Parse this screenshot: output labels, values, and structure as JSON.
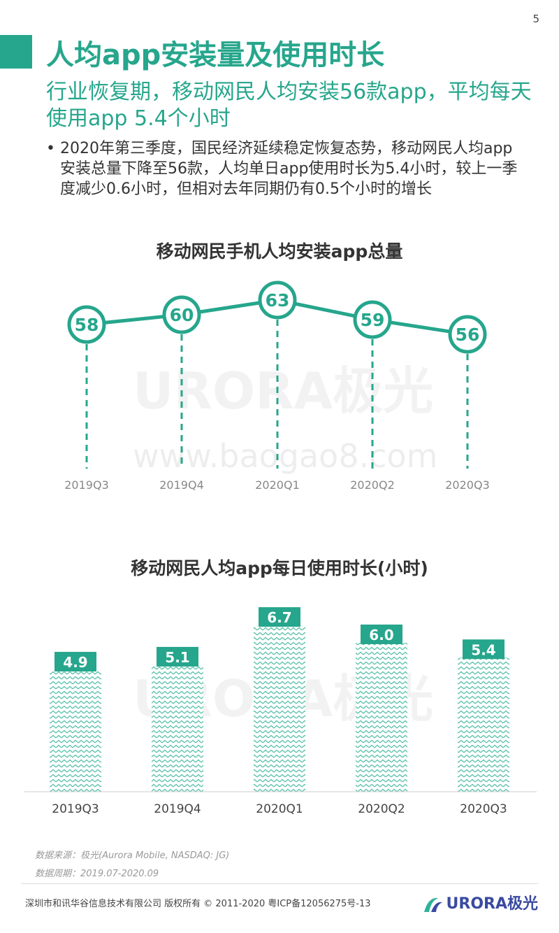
{
  "page_number": "5",
  "title": "人均app安装量及使用时长",
  "subtitle": "行业恢复期，移动网民人均安装56款app，平均每天使用app 5.4个小时",
  "bullet": "2020年第三季度，国民经济延续稳定恢复态势，移动网民人均app安装总量下降至56款，人均单日app使用时长为5.4小时，较上一季度减少0.6小时，但相对去年同期仍有0.5个小时的增长",
  "colors": {
    "accent": "#26a68c",
    "text": "#333333",
    "muted": "#999999",
    "brand": "#3a4aa0"
  },
  "watermark": {
    "brand": "URORA极光",
    "url": "www.baogao8.com"
  },
  "chart_data": [
    {
      "type": "line",
      "title": "移动网民手机人均安装app总量",
      "categories": [
        "2019Q3",
        "2019Q4",
        "2020Q1",
        "2020Q2",
        "2020Q3"
      ],
      "values": [
        58,
        60,
        63,
        59,
        56
      ],
      "ylim": [
        50,
        70
      ],
      "data_labels": true
    },
    {
      "type": "bar",
      "title": "移动网民人均app每日使用时长(小时)",
      "categories": [
        "2019Q3",
        "2019Q4",
        "2020Q1",
        "2020Q2",
        "2020Q3"
      ],
      "values": [
        4.9,
        5.1,
        6.7,
        6.0,
        5.4
      ],
      "ylim": [
        0,
        7
      ],
      "data_labels": true
    }
  ],
  "source": "数据来源：极光(Aurora Mobile, NASDAQ: JG)",
  "period": "数据周期：2019.07-2020.09",
  "copyright": "深圳市和讯华谷信息技术有限公司 版权所有 © 2011-2020 粤ICP备12056275号-13",
  "footer_logo": "URORA极光",
  "icons": {
    "logo": "aurora-logo-icon",
    "bullet": "bullet-dot-icon"
  }
}
